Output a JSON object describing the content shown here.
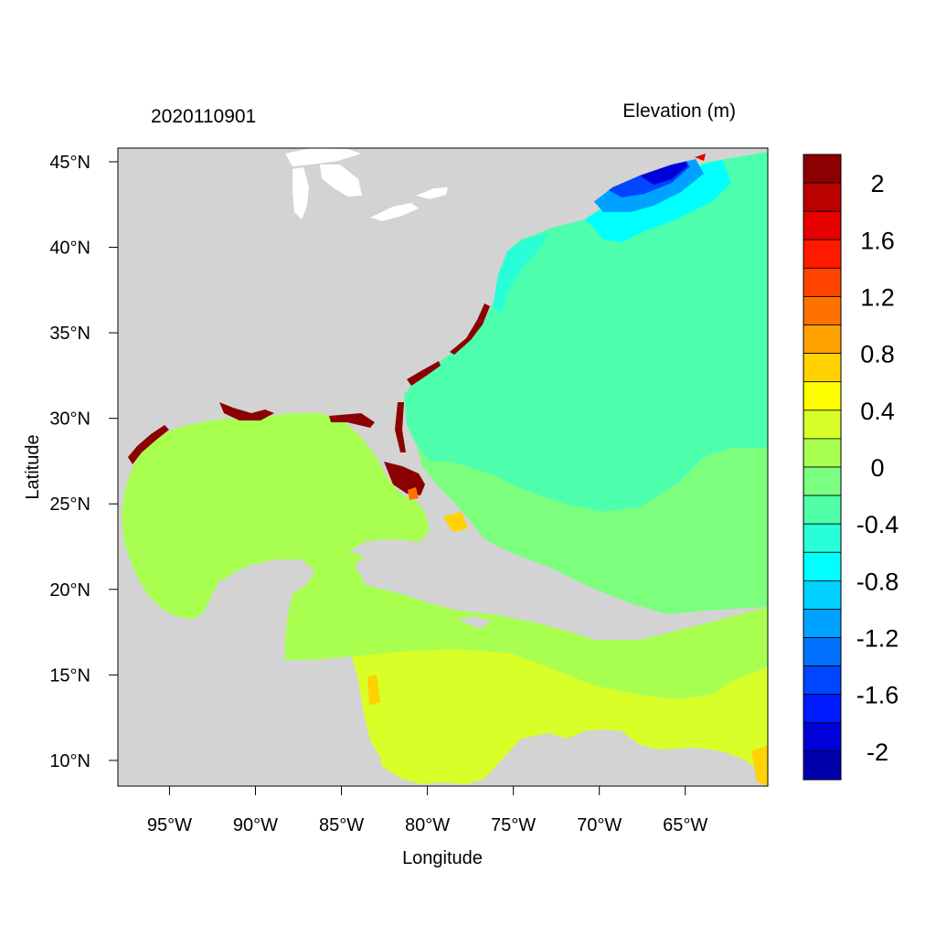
{
  "titles": {
    "left": "2020110901",
    "right": "Elevation (m)"
  },
  "axes": {
    "xlabel": "Longitude",
    "ylabel": "Latitude",
    "lon_range": [
      -98,
      -60.2
    ],
    "lat_range": [
      8.5,
      45.8
    ],
    "x_ticks": [
      {
        "value": -95,
        "label": "95°W"
      },
      {
        "value": -90,
        "label": "90°W"
      },
      {
        "value": -85,
        "label": "85°W"
      },
      {
        "value": -80,
        "label": "80°W"
      },
      {
        "value": -75,
        "label": "75°W"
      },
      {
        "value": -70,
        "label": "70°W"
      },
      {
        "value": -65,
        "label": "65°W"
      }
    ],
    "y_ticks": [
      {
        "value": 45,
        "label": "45°N"
      },
      {
        "value": 40,
        "label": "40°N"
      },
      {
        "value": 35,
        "label": "35°N"
      },
      {
        "value": 30,
        "label": "30°N"
      },
      {
        "value": 25,
        "label": "25°N"
      },
      {
        "value": 20,
        "label": "20°N"
      },
      {
        "value": 15,
        "label": "15°N"
      },
      {
        "value": 10,
        "label": "10°N"
      }
    ]
  },
  "colorbar": {
    "colors_top_to_bottom": [
      "#8b0000",
      "#bb0000",
      "#e60000",
      "#ff1a00",
      "#ff4500",
      "#ff7200",
      "#ffa200",
      "#ffd200",
      "#ffff00",
      "#d8ff28",
      "#a8ff50",
      "#7aff80",
      "#50ffa8",
      "#28ffd8",
      "#00ffff",
      "#00d0ff",
      "#00a2ff",
      "#0072ff",
      "#0045ff",
      "#001aff",
      "#0000d8",
      "#0000aa"
    ],
    "labels": [
      {
        "boundary": 1,
        "text": "2"
      },
      {
        "boundary": 3,
        "text": "1.6"
      },
      {
        "boundary": 5,
        "text": "1.2"
      },
      {
        "boundary": 7,
        "text": "0.8"
      },
      {
        "boundary": 9,
        "text": "0.4"
      },
      {
        "boundary": 11,
        "text": "0"
      },
      {
        "boundary": 13,
        "text": "-0.4"
      },
      {
        "boundary": 15,
        "text": "-0.8"
      },
      {
        "boundary": 17,
        "text": "-1.2"
      },
      {
        "boundary": 19,
        "text": "-1.6"
      },
      {
        "boundary": 21,
        "text": "-2"
      }
    ]
  },
  "map_colors": {
    "land": "#d3d3d3",
    "lakes": "#ffffff",
    "ocean_minus02": "#4dffad",
    "ocean_zero": "#7cff7c",
    "gulf": "#a8ff50",
    "caribbean_south": "#d8ff28",
    "surge_high": "#8b0000",
    "gulf_of_maine_1": "#00a2ff",
    "gulf_of_maine_2": "#0045ff",
    "gulf_of_maine_3": "#0000d8",
    "mid_atlantic_shelf": "#28ffd8",
    "yellow": "#ffd200",
    "orange": "#ff7200"
  }
}
